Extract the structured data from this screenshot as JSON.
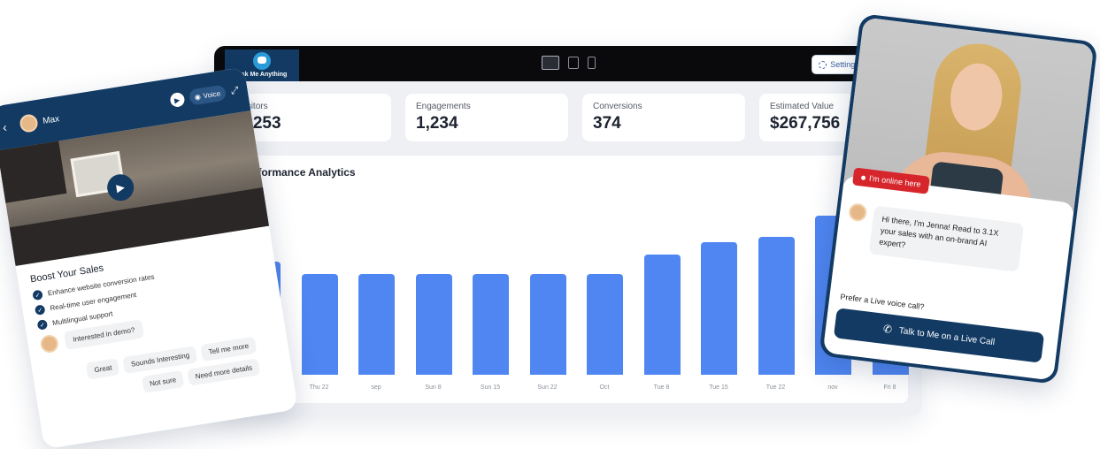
{
  "dashboard": {
    "logo_text": "Ask Me Anything",
    "settings_label": "Settings",
    "cards": [
      {
        "label": "Visitors",
        "value": "5,253"
      },
      {
        "label": "Engagements",
        "value": "1,234"
      },
      {
        "label": "Conversions",
        "value": "374"
      },
      {
        "label": "Estimated Value",
        "value": "$267,756"
      }
    ],
    "chart_title": "Performance Analytics"
  },
  "chart_data": {
    "type": "bar",
    "title": "Performance Analytics",
    "categories": [
      "",
      "Thu 22",
      "sep",
      "Sun 8",
      "Sun 15",
      "Sun 22",
      "Oct",
      "Tue 8",
      "Tue 15",
      "Tue 22",
      "nov",
      "Fri 8"
    ],
    "values": [
      64,
      57,
      57,
      57,
      57,
      57,
      57,
      68,
      75,
      78,
      90,
      15
    ],
    "color": "#4f86f2",
    "grid": false
  },
  "left_phone": {
    "agent_name": "Max",
    "voice_label": "Voice",
    "heading": "Boost Your Sales",
    "features": [
      "Enhance website conversion rates",
      "Real-time user engagement",
      "Multilingual support"
    ],
    "demo_message": "Interested in demo?",
    "chips": [
      "Great",
      "Sounds Interesting",
      "Tell me more",
      "Not sure",
      "Need more details"
    ]
  },
  "right_phone": {
    "status": "I'm online here",
    "message": "Hi there, I'm Jenna! Read to 3.1X your sales with an on-brand AI expert?",
    "prefer_text": "Prefer a Live voice call?",
    "cta_label": "Talk to Me on a Live Call"
  },
  "colors": {
    "brand": "#123a63",
    "bar": "#4f86f2",
    "online": "#d6262c"
  }
}
